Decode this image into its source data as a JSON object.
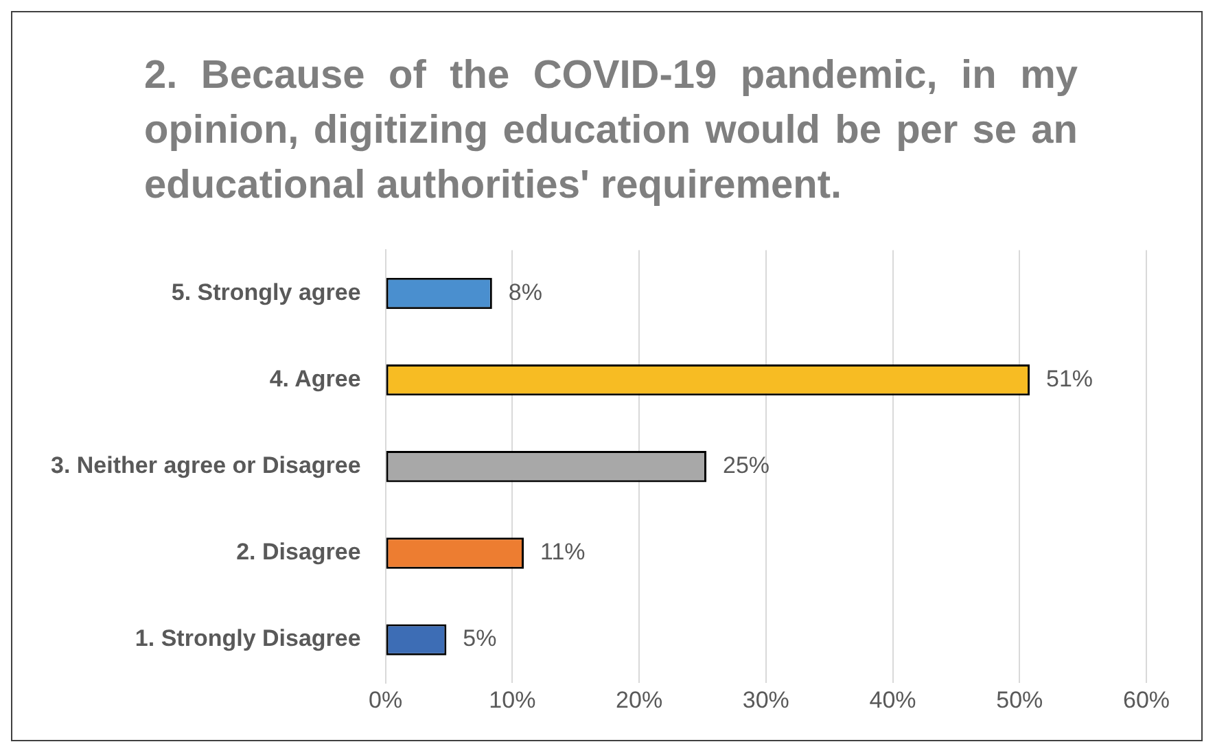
{
  "chart_data": {
    "type": "bar",
    "orientation": "horizontal",
    "title": "2. Because of the COVID-19 pandemic, in my opinion, digitizing education would be per se an educational authorities' requirement.",
    "categories": [
      "5. Strongly agree",
      "4. Agree",
      "3. Neither agree or Disagree",
      "2. Disagree",
      "1. Strongly Disagree"
    ],
    "values": [
      8.4,
      50.8,
      25.3,
      10.9,
      4.8
    ],
    "value_labels": [
      "8%",
      "51%",
      "25%",
      "11%",
      "5%"
    ],
    "colors": [
      "#4a8fcf",
      "#f7bc23",
      "#a8a8a8",
      "#ed7d31",
      "#3d6db5"
    ],
    "xlim": [
      0,
      60
    ],
    "xticks": [
      {
        "value": 0,
        "label": "0%"
      },
      {
        "value": 10,
        "label": "10%"
      },
      {
        "value": 20,
        "label": "20%"
      },
      {
        "value": 30,
        "label": "30%"
      },
      {
        "value": 40,
        "label": "40%"
      },
      {
        "value": 50,
        "label": "50%"
      },
      {
        "value": 60,
        "label": "60%"
      }
    ],
    "grid": "x",
    "legend": false
  }
}
